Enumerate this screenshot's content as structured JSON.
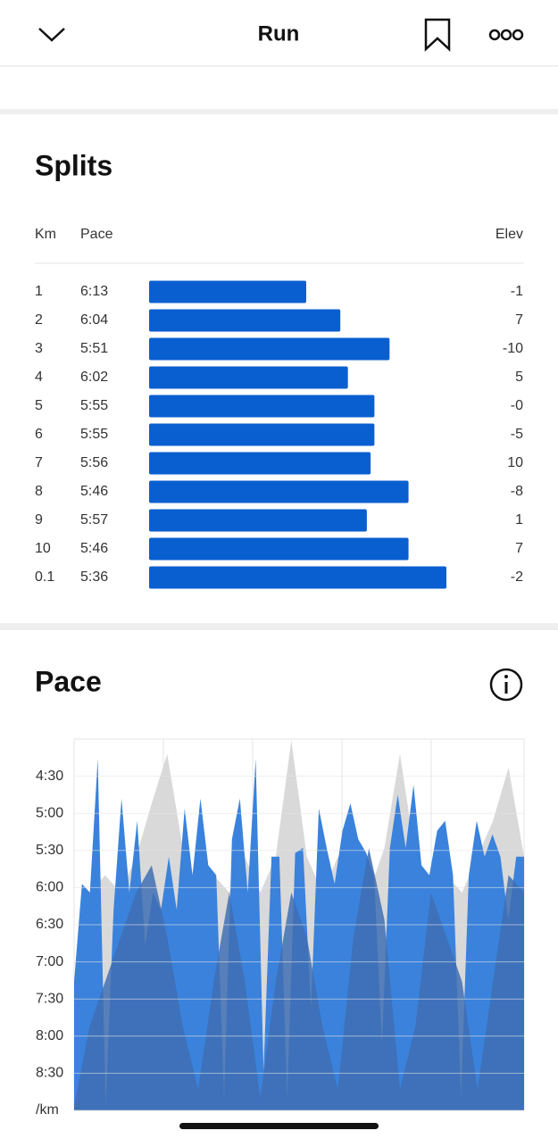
{
  "header": {
    "title": "Run"
  },
  "splits": {
    "title": "Splits",
    "columns": {
      "km": "Km",
      "pace": "Pace",
      "elev": "Elev"
    },
    "rows": [
      {
        "km": "1",
        "pace": "6:13",
        "elev": "-1"
      },
      {
        "km": "2",
        "pace": "6:04",
        "elev": "7"
      },
      {
        "km": "3",
        "pace": "5:51",
        "elev": "-10"
      },
      {
        "km": "4",
        "pace": "6:02",
        "elev": "5"
      },
      {
        "km": "5",
        "pace": "5:55",
        "elev": "-0"
      },
      {
        "km": "6",
        "pace": "5:55",
        "elev": "-5"
      },
      {
        "km": "7",
        "pace": "5:56",
        "elev": "10"
      },
      {
        "km": "8",
        "pace": "5:46",
        "elev": "-8"
      },
      {
        "km": "9",
        "pace": "5:57",
        "elev": "1"
      },
      {
        "km": "10",
        "pace": "5:46",
        "elev": "7"
      },
      {
        "km": "0.1",
        "pace": "5:36",
        "elev": "-2"
      }
    ]
  },
  "pace": {
    "title": "Pace",
    "chart_data": {
      "type": "area",
      "y_reversed": true,
      "grid": true,
      "ylim": [
        240,
        540
      ],
      "yticks": [
        {
          "value": 270,
          "label": "4:30"
        },
        {
          "value": 300,
          "label": "5:00"
        },
        {
          "value": 330,
          "label": "5:30"
        },
        {
          "value": 360,
          "label": "6:00"
        },
        {
          "value": 390,
          "label": "6:30"
        },
        {
          "value": 420,
          "label": "7:00"
        },
        {
          "value": 450,
          "label": "7:30"
        },
        {
          "value": 480,
          "label": "8:00"
        },
        {
          "value": 510,
          "label": "8:30"
        },
        {
          "value": 540,
          "label": "/km"
        }
      ],
      "series": [
        {
          "color": "#d9d9d9",
          "values": [
            436,
            364,
            350,
            364,
            335,
            292,
            252,
            328,
            400,
            350,
            364,
            335,
            364,
            335,
            241,
            335,
            364,
            335,
            335,
            364,
            328,
            252,
            335,
            364,
            350,
            364,
            335,
            306,
            263,
            335
          ]
        },
        {
          "color": "#3a82dc",
          "values": [
            436,
            357,
            364,
            256,
            537,
            378,
            288,
            364,
            306,
            407,
            364,
            378,
            335,
            378,
            296,
            350,
            288,
            342,
            350,
            530,
            321,
            288,
            364,
            256,
            508,
            335,
            335,
            530,
            332,
            328,
            458,
            296,
            328,
            357,
            314,
            292,
            321,
            332,
            350,
            487,
            328,
            285,
            328,
            277,
            342,
            350,
            314,
            306,
            350,
            530,
            350,
            306,
            335,
            317,
            335,
            386,
            335,
            335
          ]
        },
        {
          "color": "#3f6fb3",
          "values": [
            537,
            472,
            436,
            400,
            364,
            342,
            400,
            472,
            523,
            436,
            364,
            436,
            530,
            436,
            364,
            400,
            472,
            523,
            400,
            328,
            386,
            523,
            472,
            364,
            400,
            436,
            523,
            436,
            350,
            364
          ]
        }
      ]
    }
  }
}
